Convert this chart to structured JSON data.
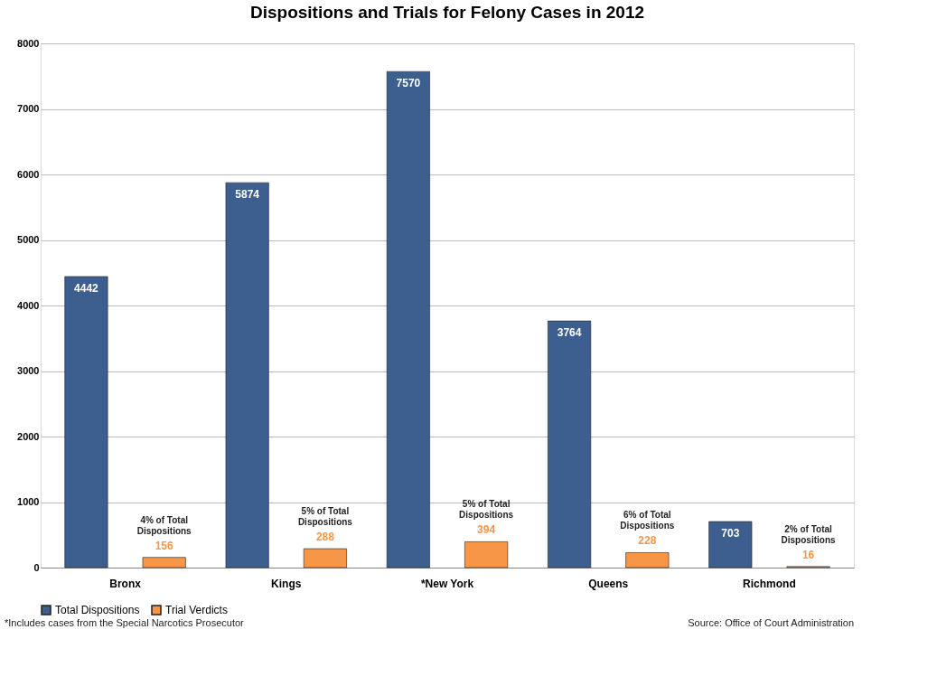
{
  "chart_data": {
    "type": "bar",
    "title": "Dispositions and Trials for Felony Cases in 2012",
    "categories": [
      "Bronx",
      "Kings",
      "*New York",
      "Queens",
      "Richmond"
    ],
    "series": [
      {
        "name": "Total Dispositions",
        "color": "#3d5f8f",
        "values": [
          4442,
          5874,
          7570,
          3764,
          703
        ]
      },
      {
        "name": "Trial Verdicts",
        "color": "#f79646",
        "values": [
          156,
          288,
          394,
          228,
          16
        ]
      }
    ],
    "ylim": [
      0,
      8000
    ],
    "yticks": [
      0,
      1000,
      2000,
      3000,
      4000,
      5000,
      6000,
      7000,
      8000
    ],
    "grid": "y",
    "legend": "bottom",
    "data_labels": true,
    "annotations": [
      "4% of Total\nDispositions",
      "5% of Total\nDispositions",
      "5% of Total\nDispositions",
      "6% of Total\nDispositions",
      "2% of Total\nDispositions",
      "*Includes cases from the Special Narcotics Prosecutor",
      "Source: Office of Court Administration"
    ]
  }
}
